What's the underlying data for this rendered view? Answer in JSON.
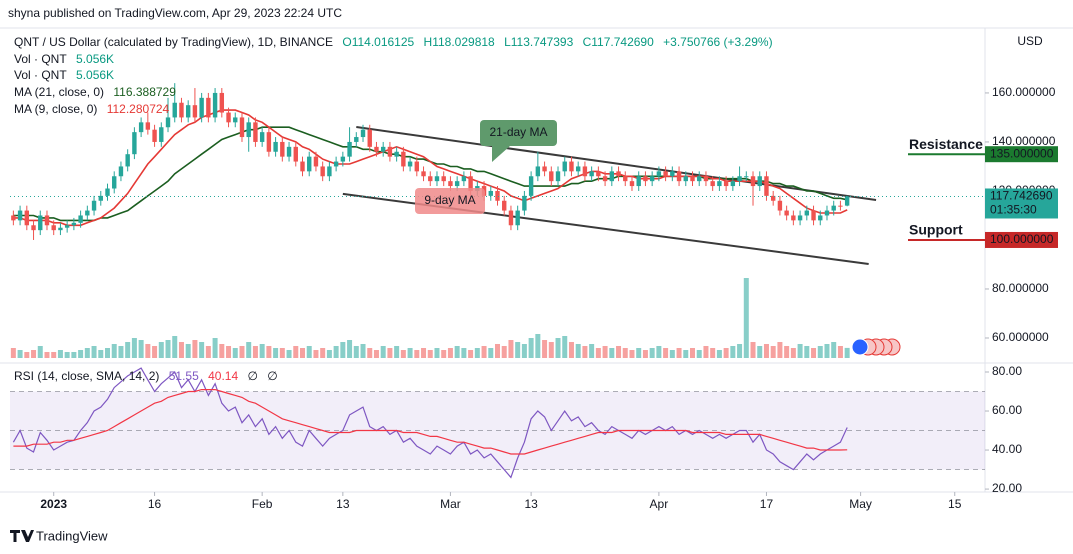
{
  "chart_data": {
    "type": "candlestick",
    "publisher": "shyna published on TradingView.com, Apr 29, 2023 22:24 UTC",
    "title": "QNT / US Dollar (calculated by TradingView), 1D, BINANCE",
    "ohlc_labels": [
      "O114.016125",
      "H118.029818",
      "L113.747393",
      "C117.742690"
    ],
    "change_label": "+3.750766 (+3.29%)",
    "currency": "USD",
    "brand": "TradingView",
    "up_color": "#26a69a",
    "down_color": "#ef5350",
    "xlim": [
      -0.5,
      144.5
    ],
    "xticks": [
      {
        "value": 6,
        "label": "2023"
      },
      {
        "value": 21,
        "label": "16"
      },
      {
        "value": 37,
        "label": "Feb"
      },
      {
        "value": 49,
        "label": "13"
      },
      {
        "value": 65,
        "label": "Mar"
      },
      {
        "value": 77,
        "label": "13"
      },
      {
        "value": 96,
        "label": "Apr"
      },
      {
        "value": 112,
        "label": "17"
      },
      {
        "value": 126,
        "label": "May"
      },
      {
        "value": 140,
        "label": "15"
      }
    ],
    "ylim": [
      50.2,
      186.5
    ],
    "yticks": [
      {
        "value": 160,
        "label": "160.000000"
      },
      {
        "value": 140,
        "label": "140.000000"
      },
      {
        "value": 120,
        "label": "120.000000"
      },
      {
        "value": 80,
        "label": "80.000000"
      },
      {
        "value": 60,
        "label": "60.000000"
      }
    ],
    "open": [
      110,
      108,
      112,
      106,
      104,
      110,
      106,
      104,
      105,
      106,
      107,
      110,
      112,
      116,
      118,
      121,
      126,
      130,
      135,
      144,
      148,
      145,
      140,
      146,
      150,
      156,
      150,
      155,
      150,
      158,
      150,
      160,
      152,
      148,
      150,
      142,
      148,
      140,
      144,
      136,
      140,
      134,
      138,
      132,
      128,
      134,
      130,
      126,
      130,
      132,
      134,
      140,
      142,
      145,
      138,
      136,
      138,
      134,
      136,
      130,
      132,
      128,
      126,
      124,
      126,
      124,
      122,
      124,
      126,
      120,
      122,
      118,
      120,
      116,
      112,
      106,
      112,
      118,
      126,
      130,
      128,
      124,
      128,
      132,
      128,
      130,
      126,
      128,
      126,
      124,
      128,
      126,
      124,
      122,
      126,
      124,
      126,
      128,
      126,
      128,
      124,
      126,
      124,
      126,
      124,
      122,
      124,
      122,
      124,
      126,
      126,
      122,
      126,
      118,
      116,
      112,
      110,
      108,
      110,
      112,
      108,
      110,
      112,
      114,
      114.016125
    ],
    "high": [
      112,
      114,
      114,
      108,
      112,
      112,
      108,
      107,
      108,
      109,
      112,
      114,
      118,
      120,
      123,
      128,
      132,
      137,
      146,
      150,
      152,
      147,
      148,
      158,
      164,
      158,
      157,
      162,
      160,
      160,
      162,
      162,
      154,
      152,
      152,
      150,
      150,
      146,
      146,
      142,
      142,
      140,
      140,
      134,
      136,
      136,
      132,
      132,
      134,
      136,
      146,
      144,
      147,
      147,
      140,
      140,
      140,
      138,
      138,
      134,
      134,
      130,
      128,
      128,
      128,
      126,
      126,
      128,
      128,
      124,
      124,
      122,
      122,
      118,
      114,
      114,
      120,
      128,
      136,
      132,
      130,
      130,
      134,
      134,
      132,
      132,
      130,
      130,
      128,
      130,
      130,
      128,
      126,
      128,
      128,
      128,
      130,
      130,
      130,
      130,
      128,
      128,
      128,
      128,
      126,
      126,
      126,
      126,
      130,
      128,
      128,
      128,
      128,
      120,
      118,
      114,
      112,
      112,
      114,
      114,
      112,
      114,
      116,
      116,
      118.029818
    ],
    "low": [
      106,
      106,
      104,
      100,
      102,
      104,
      102,
      102,
      103,
      104,
      105,
      108,
      110,
      114,
      116,
      119,
      124,
      128,
      133,
      142,
      143,
      138,
      138,
      144,
      148,
      148,
      148,
      148,
      148,
      148,
      148,
      150,
      146,
      146,
      140,
      136,
      138,
      138,
      134,
      134,
      132,
      132,
      130,
      126,
      126,
      128,
      124,
      124,
      128,
      130,
      132,
      138,
      140,
      136,
      134,
      134,
      132,
      132,
      128,
      128,
      126,
      124,
      122,
      122,
      122,
      120,
      120,
      122,
      118,
      118,
      116,
      116,
      114,
      110,
      104,
      104,
      110,
      116,
      124,
      126,
      122,
      122,
      126,
      126,
      126,
      124,
      124,
      124,
      122,
      122,
      124,
      122,
      120,
      120,
      122,
      122,
      124,
      124,
      124,
      122,
      122,
      122,
      122,
      122,
      120,
      120,
      120,
      120,
      122,
      124,
      114,
      120,
      116,
      114,
      110,
      108,
      106,
      106,
      108,
      106,
      106,
      108,
      110,
      112,
      113.747393
    ],
    "close": [
      108,
      112,
      106,
      104,
      110,
      106,
      104,
      105,
      106,
      107,
      110,
      112,
      116,
      118,
      121,
      126,
      130,
      135,
      144,
      148,
      145,
      140,
      146,
      150,
      156,
      150,
      155,
      150,
      158,
      150,
      160,
      152,
      148,
      150,
      142,
      148,
      140,
      144,
      136,
      140,
      134,
      138,
      132,
      128,
      134,
      130,
      126,
      130,
      132,
      134,
      140,
      142,
      145,
      138,
      136,
      138,
      134,
      136,
      130,
      132,
      128,
      126,
      124,
      126,
      124,
      122,
      124,
      126,
      120,
      122,
      118,
      120,
      116,
      112,
      106,
      112,
      118,
      126,
      130,
      128,
      124,
      128,
      132,
      128,
      130,
      126,
      128,
      126,
      124,
      128,
      126,
      124,
      122,
      126,
      124,
      126,
      128,
      126,
      128,
      124,
      126,
      124,
      126,
      124,
      122,
      124,
      122,
      124,
      126,
      126,
      122,
      126,
      118,
      116,
      112,
      110,
      108,
      110,
      112,
      108,
      110,
      112,
      114,
      113.991924,
      117.74269
    ],
    "last_price_label": "117.742690",
    "countdown": "01:35:30",
    "volume": {
      "name": "Vol · QNT",
      "last_label": "5.056K",
      "vlim": [
        0,
        100
      ],
      "values": [
        5,
        4,
        3,
        4,
        6,
        3,
        3,
        4,
        3,
        3,
        4,
        5,
        6,
        4,
        5,
        7,
        6,
        8,
        10,
        9,
        7,
        6,
        8,
        9,
        11,
        8,
        7,
        9,
        8,
        6,
        10,
        7,
        6,
        5,
        6,
        8,
        6,
        7,
        6,
        5,
        5,
        4,
        6,
        5,
        6,
        4,
        5,
        4,
        6,
        8,
        9,
        6,
        7,
        5,
        4,
        6,
        5,
        6,
        4,
        5,
        4,
        5,
        4,
        5,
        4,
        5,
        6,
        5,
        4,
        5,
        6,
        5,
        7,
        6,
        9,
        8,
        7,
        10,
        12,
        9,
        8,
        10,
        11,
        8,
        7,
        6,
        7,
        5,
        6,
        5,
        6,
        5,
        4,
        5,
        4,
        5,
        6,
        5,
        4,
        5,
        4,
        5,
        4,
        6,
        5,
        4,
        5,
        6,
        7,
        40,
        8,
        6,
        7,
        6,
        8,
        6,
        5,
        7,
        6,
        5,
        6,
        7,
        8,
        6,
        5.056
      ]
    },
    "series": [
      {
        "name": "MA (21, close, 0)",
        "color": "#1b5e20",
        "values": [
          110,
          110,
          110,
          110,
          109,
          109,
          109,
          108,
          108,
          108,
          108,
          108,
          108,
          109,
          109,
          110,
          111,
          112,
          114,
          116,
          118,
          120,
          122,
          124,
          127,
          129,
          131,
          133,
          135,
          137,
          139,
          141,
          142,
          143,
          144,
          145,
          145,
          146,
          146,
          146,
          146,
          146,
          145,
          144,
          143,
          142,
          141,
          140,
          139,
          138,
          138,
          138,
          137,
          137,
          136,
          136,
          135,
          135,
          134,
          134,
          133,
          133,
          132,
          131,
          131,
          130,
          130,
          129,
          129,
          128,
          128,
          127,
          126,
          125,
          124,
          123,
          122,
          122,
          122,
          122,
          122,
          122,
          122,
          123,
          123,
          124,
          124,
          125,
          125,
          125,
          126,
          126,
          126,
          126,
          126,
          126,
          126,
          126,
          126,
          126,
          126,
          126,
          126,
          125,
          125,
          125,
          125,
          125,
          125,
          125,
          124,
          124,
          124,
          123,
          123,
          122,
          122,
          121,
          120,
          120,
          119,
          118,
          117,
          117,
          116.388729
        ]
      },
      {
        "name": "MA (9, close, 0)",
        "color": "#e53935",
        "values": [
          109,
          109,
          108,
          108,
          108,
          108,
          107,
          107,
          106,
          106,
          106,
          107,
          108,
          109,
          111,
          113,
          116,
          119,
          123,
          127,
          131,
          134,
          137,
          140,
          143,
          145,
          147,
          148,
          150,
          151,
          152,
          153,
          153,
          153,
          152,
          151,
          149,
          148,
          146,
          144,
          142,
          141,
          140,
          138,
          137,
          135,
          133,
          132,
          131,
          131,
          131,
          132,
          133,
          134,
          135,
          136,
          137,
          138,
          137,
          136,
          135,
          134,
          132,
          130,
          129,
          128,
          127,
          126,
          125,
          124,
          123,
          122,
          121,
          120,
          118,
          117,
          116,
          117,
          118,
          119,
          120,
          121,
          123,
          125,
          126,
          127,
          128,
          128,
          127,
          127,
          127,
          126,
          126,
          125,
          125,
          125,
          125,
          126,
          126,
          126,
          126,
          126,
          126,
          126,
          125,
          125,
          124,
          124,
          124,
          124,
          124,
          124,
          123,
          122,
          121,
          119,
          117,
          115,
          113,
          112,
          111,
          111,
          111,
          111,
          112.280724
        ]
      }
    ],
    "rsi": {
      "name": "RSI (14, close, SMA, 14, 2)",
      "color": "#7e57c2",
      "extra_labels": [
        "∅",
        "∅"
      ],
      "ylim": [
        18.5,
        84.1
      ],
      "yticks": [
        {
          "value": 80,
          "label": "80.00"
        },
        {
          "value": 60,
          "label": "60.00"
        },
        {
          "value": 40,
          "label": "40.00"
        },
        {
          "value": 20,
          "label": "20.00"
        }
      ],
      "bands": [
        70,
        50,
        30
      ],
      "values": [
        44,
        50,
        41,
        39,
        49,
        45,
        40,
        42,
        44,
        45,
        50,
        54,
        60,
        62,
        66,
        72,
        75,
        78,
        80,
        82,
        76,
        70,
        74,
        77,
        80,
        72,
        76,
        70,
        76,
        68,
        74,
        64,
        60,
        62,
        54,
        58,
        52,
        56,
        48,
        52,
        46,
        50,
        44,
        42,
        50,
        46,
        42,
        46,
        48,
        50,
        58,
        60,
        62,
        52,
        50,
        52,
        48,
        50,
        44,
        46,
        42,
        40,
        38,
        42,
        40,
        38,
        42,
        44,
        38,
        40,
        36,
        38,
        34,
        30,
        26,
        36,
        44,
        56,
        60,
        57,
        50,
        55,
        60,
        55,
        57,
        52,
        54,
        50,
        48,
        52,
        50,
        48,
        46,
        50,
        48,
        50,
        52,
        50,
        52,
        48,
        50,
        48,
        50,
        48,
        46,
        48,
        46,
        48,
        50,
        50,
        44,
        48,
        40,
        38,
        34,
        32,
        30,
        34,
        38,
        35,
        38,
        40,
        42,
        44,
        51.55
      ],
      "sma": {
        "color": "#f23645",
        "values": [
          42,
          42,
          42,
          43,
          43,
          43,
          44,
          44,
          45,
          45,
          46,
          47,
          48,
          49,
          50,
          52,
          54,
          56,
          58,
          60,
          62,
          64,
          65,
          67,
          68,
          69,
          70,
          70,
          71,
          71,
          71,
          70,
          69,
          68,
          67,
          65,
          64,
          62,
          60,
          58,
          56,
          55,
          54,
          53,
          52,
          51,
          50,
          49,
          49,
          49,
          49,
          50,
          50,
          50,
          50,
          50,
          50,
          50,
          49,
          49,
          49,
          48,
          47,
          47,
          46,
          45,
          44,
          44,
          43,
          42,
          41,
          41,
          40,
          39,
          38,
          38,
          38,
          39,
          40,
          41,
          42,
          43,
          44,
          45,
          46,
          47,
          48,
          49,
          49,
          49,
          50,
          50,
          50,
          50,
          50,
          50,
          50,
          50,
          50,
          50,
          50,
          49,
          49,
          49,
          49,
          49,
          48,
          48,
          48,
          48,
          48,
          48,
          47,
          46,
          45,
          44,
          43,
          42,
          41,
          41,
          40,
          40,
          40,
          40,
          40.14
        ]
      }
    },
    "trendlines": [
      {
        "start": [
          51,
          146.1
        ],
        "end": [
          128.3,
          116.3
        ]
      },
      {
        "start": [
          49,
          118.8
        ],
        "end": [
          127.2,
          90.2
        ]
      }
    ],
    "levels": [
      {
        "label": "Resistance",
        "value": 135,
        "value_label": "135.000000",
        "color": "#1b7a2f"
      },
      {
        "label": "Support",
        "value": 100,
        "value_label": "100.000000",
        "color": "#c62828"
      }
    ],
    "callouts": [
      {
        "text": "21-day MA",
        "color": "#5f9a6c"
      },
      {
        "text": "9-day MA",
        "color": "#f08a8a"
      }
    ]
  }
}
